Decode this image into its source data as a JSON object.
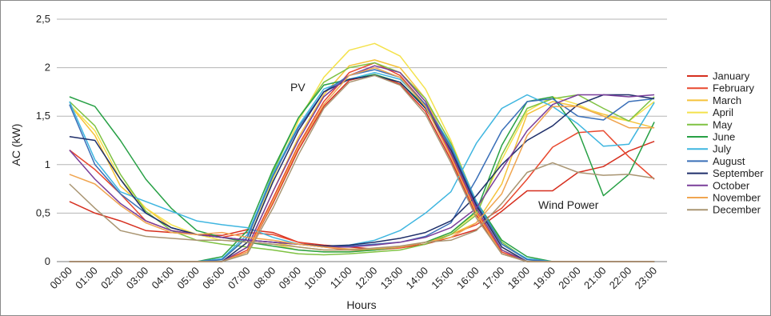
{
  "chart_data": {
    "type": "line",
    "xlabel": "Hours",
    "ylabel": "AC (kW)",
    "ylim": [
      0,
      2.5
    ],
    "yticks": [
      "0",
      "0,5",
      "1",
      "1,5",
      "2",
      "2,5"
    ],
    "categories": [
      "00:00",
      "01:00",
      "02:00",
      "03:00",
      "04:00",
      "05:00",
      "06:00",
      "07:00",
      "08:00",
      "09:00",
      "10:00",
      "11:00",
      "12:00",
      "13:00",
      "14:00",
      "15:00",
      "16:00",
      "17:00",
      "18:00",
      "19:00",
      "20:00",
      "21:00",
      "22:00",
      "23:00"
    ],
    "grid": true,
    "legend_position": "right",
    "annotations": [
      "PV",
      "Wind Power"
    ],
    "series": [
      {
        "name": "January",
        "color": "#d62f1f",
        "pv": [
          0,
          0,
          0,
          0,
          0,
          0,
          0,
          0.1,
          0.6,
          1.15,
          1.6,
          1.87,
          1.93,
          1.83,
          1.55,
          1.05,
          0.48,
          0.08,
          0,
          0,
          0,
          0,
          0,
          0
        ],
        "wind": [
          0.62,
          0.5,
          0.42,
          0.32,
          0.3,
          0.28,
          0.27,
          0.33,
          0.3,
          0.2,
          0.17,
          0.15,
          0.13,
          0.15,
          0.18,
          0.25,
          0.33,
          0.52,
          0.73,
          0.73,
          0.92,
          0.98,
          1.14,
          1.24
        ]
      },
      {
        "name": "February",
        "color": "#e8492f",
        "pv": [
          0,
          0,
          0,
          0,
          0,
          0,
          0,
          0.12,
          0.65,
          1.2,
          1.65,
          1.95,
          2.05,
          1.92,
          1.62,
          1.1,
          0.52,
          0.1,
          0,
          0,
          0,
          0,
          0,
          0
        ],
        "wind": [
          1.15,
          0.95,
          0.7,
          0.42,
          0.32,
          0.28,
          0.25,
          0.3,
          0.28,
          0.2,
          0.15,
          0.12,
          0.12,
          0.14,
          0.18,
          0.28,
          0.38,
          0.55,
          0.85,
          1.18,
          1.33,
          1.35,
          1.08,
          0.85
        ]
      },
      {
        "name": "March",
        "color": "#f5c23a",
        "pv": [
          0,
          0,
          0,
          0,
          0,
          0,
          0,
          0.15,
          0.72,
          1.28,
          1.72,
          2.02,
          2.08,
          2.0,
          1.68,
          1.15,
          0.55,
          0.12,
          0,
          0,
          0,
          0,
          0,
          0
        ],
        "wind": [
          1.62,
          1.3,
          0.78,
          0.55,
          0.35,
          0.28,
          0.25,
          0.22,
          0.2,
          0.15,
          0.12,
          0.12,
          0.13,
          0.15,
          0.2,
          0.28,
          0.4,
          0.8,
          1.52,
          1.65,
          1.6,
          1.52,
          1.45,
          1.38
        ]
      },
      {
        "name": "April",
        "color": "#f4e24c",
        "pv": [
          0,
          0,
          0,
          0,
          0,
          0,
          0,
          0.2,
          0.85,
          1.45,
          1.9,
          2.18,
          2.25,
          2.12,
          1.78,
          1.25,
          0.6,
          0.15,
          0,
          0,
          0,
          0,
          0,
          0
        ],
        "wind": [
          1.62,
          1.35,
          0.85,
          0.55,
          0.38,
          0.28,
          0.22,
          0.2,
          0.18,
          0.12,
          0.1,
          0.1,
          0.12,
          0.15,
          0.2,
          0.3,
          0.5,
          1.05,
          1.55,
          1.7,
          1.62,
          1.5,
          1.45,
          1.65
        ]
      },
      {
        "name": "May",
        "color": "#7fc242",
        "pv": [
          0,
          0,
          0,
          0,
          0,
          0,
          0.02,
          0.25,
          0.92,
          1.48,
          1.85,
          2.0,
          2.05,
          1.95,
          1.68,
          1.22,
          0.62,
          0.2,
          0.02,
          0,
          0,
          0,
          0,
          0
        ],
        "wind": [
          1.65,
          1.4,
          0.9,
          0.52,
          0.32,
          0.22,
          0.18,
          0.15,
          0.12,
          0.08,
          0.07,
          0.08,
          0.1,
          0.12,
          0.18,
          0.28,
          0.48,
          1.1,
          1.58,
          1.68,
          1.72,
          1.58,
          1.45,
          1.7
        ]
      },
      {
        "name": "June",
        "color": "#27a045",
        "pv": [
          0,
          0,
          0,
          0,
          0,
          0,
          0.05,
          0.32,
          0.95,
          1.48,
          1.82,
          1.88,
          1.93,
          1.85,
          1.6,
          1.18,
          0.62,
          0.22,
          0.05,
          0,
          0,
          0,
          0,
          0
        ],
        "wind": [
          1.7,
          1.6,
          1.25,
          0.85,
          0.55,
          0.32,
          0.25,
          0.2,
          0.16,
          0.12,
          0.1,
          0.1,
          0.12,
          0.15,
          0.2,
          0.3,
          0.52,
          1.2,
          1.65,
          1.7,
          1.35,
          0.68,
          0.9,
          1.44
        ]
      },
      {
        "name": "July",
        "color": "#3fb6e0",
        "pv": [
          0,
          0,
          0,
          0,
          0,
          0,
          0.03,
          0.28,
          0.9,
          1.4,
          1.78,
          1.88,
          1.95,
          1.88,
          1.62,
          1.2,
          0.62,
          0.18,
          0.03,
          0,
          0,
          0,
          0,
          0
        ],
        "wind": [
          1.65,
          1.05,
          0.72,
          0.62,
          0.52,
          0.42,
          0.38,
          0.35,
          0.25,
          0.18,
          0.15,
          0.17,
          0.22,
          0.32,
          0.5,
          0.72,
          1.22,
          1.58,
          1.72,
          1.6,
          1.42,
          1.19,
          1.21,
          1.64
        ]
      },
      {
        "name": "August",
        "color": "#3a6fb8",
        "pv": [
          0,
          0,
          0,
          0,
          0,
          0,
          0.02,
          0.25,
          0.88,
          1.38,
          1.75,
          1.92,
          1.98,
          1.9,
          1.62,
          1.18,
          0.6,
          0.18,
          0.02,
          0,
          0,
          0,
          0,
          0
        ],
        "wind": [
          1.62,
          1.0,
          0.7,
          0.5,
          0.35,
          0.28,
          0.25,
          0.22,
          0.2,
          0.18,
          0.16,
          0.16,
          0.18,
          0.2,
          0.26,
          0.4,
          0.85,
          1.35,
          1.65,
          1.68,
          1.5,
          1.46,
          1.65,
          1.68
        ]
      },
      {
        "name": "September",
        "color": "#1f2f6a",
        "pv": [
          0,
          0,
          0,
          0,
          0,
          0,
          0,
          0.2,
          0.82,
          1.35,
          1.75,
          1.88,
          1.92,
          1.85,
          1.58,
          1.15,
          0.58,
          0.15,
          0,
          0,
          0,
          0,
          0,
          0
        ],
        "wind": [
          1.29,
          1.25,
          0.85,
          0.5,
          0.35,
          0.28,
          0.25,
          0.22,
          0.2,
          0.18,
          0.16,
          0.17,
          0.2,
          0.24,
          0.3,
          0.42,
          0.68,
          1.0,
          1.25,
          1.4,
          1.62,
          1.72,
          1.72,
          1.68
        ]
      },
      {
        "name": "October",
        "color": "#7a3e9a",
        "pv": [
          0,
          0,
          0,
          0,
          0,
          0,
          0,
          0.15,
          0.72,
          1.25,
          1.7,
          1.92,
          2.02,
          1.95,
          1.65,
          1.12,
          0.55,
          0.12,
          0,
          0,
          0,
          0,
          0,
          0
        ],
        "wind": [
          1.15,
          0.85,
          0.6,
          0.42,
          0.32,
          0.28,
          0.25,
          0.22,
          0.2,
          0.18,
          0.15,
          0.15,
          0.17,
          0.2,
          0.25,
          0.35,
          0.55,
          0.95,
          1.35,
          1.62,
          1.72,
          1.72,
          1.7,
          1.72
        ]
      },
      {
        "name": "November",
        "color": "#f0a550",
        "pv": [
          0,
          0,
          0,
          0,
          0,
          0,
          0,
          0.1,
          0.62,
          1.18,
          1.62,
          1.92,
          2.0,
          1.9,
          1.6,
          1.08,
          0.5,
          0.08,
          0,
          0,
          0,
          0,
          0,
          0
        ],
        "wind": [
          0.9,
          0.8,
          0.58,
          0.4,
          0.3,
          0.28,
          0.3,
          0.25,
          0.22,
          0.18,
          0.15,
          0.13,
          0.13,
          0.15,
          0.2,
          0.25,
          0.4,
          0.7,
          1.3,
          1.6,
          1.6,
          1.5,
          1.38,
          1.38
        ]
      },
      {
        "name": "December",
        "color": "#a99572",
        "pv": [
          0,
          0,
          0,
          0,
          0,
          0,
          0,
          0.08,
          0.55,
          1.1,
          1.58,
          1.85,
          1.92,
          1.82,
          1.52,
          1.02,
          0.45,
          0.08,
          0,
          0,
          0,
          0,
          0,
          0
        ],
        "wind": [
          0.8,
          0.55,
          0.32,
          0.26,
          0.24,
          0.22,
          0.22,
          0.2,
          0.18,
          0.15,
          0.12,
          0.12,
          0.14,
          0.16,
          0.2,
          0.22,
          0.32,
          0.6,
          0.92,
          1.02,
          0.92,
          0.89,
          0.9,
          0.86
        ]
      }
    ]
  }
}
